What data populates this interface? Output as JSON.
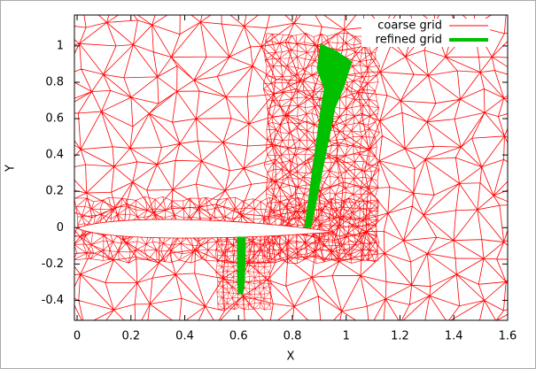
{
  "chart_data": {
    "type": "mesh",
    "xlabel": "X",
    "ylabel": "Y",
    "xlim": [
      -0.01,
      1.6
    ],
    "ylim": [
      -0.51,
      1.17
    ],
    "xticks": [
      0,
      0.2,
      0.4,
      0.6,
      0.8,
      1,
      1.2,
      1.4,
      1.6
    ],
    "yticks": [
      -0.4,
      -0.2,
      0,
      0.2,
      0.4,
      0.6,
      0.8,
      1
    ],
    "legend": "top-right",
    "series": [
      {
        "name": "coarse grid",
        "color": "#ff0000"
      },
      {
        "name": "refined grid",
        "color": "#00c000"
      }
    ]
  }
}
